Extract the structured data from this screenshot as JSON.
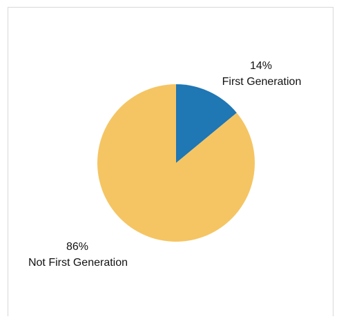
{
  "chart_data": {
    "type": "pie",
    "slices": [
      {
        "label": "First Generation",
        "value": 14,
        "pct_text": "14%",
        "color": "#1f77b4"
      },
      {
        "label": "Not First Generation",
        "value": 86,
        "pct_text": "86%",
        "color": "#f5c563"
      }
    ],
    "start_angle_deg": 90,
    "direction": "clockwise"
  }
}
